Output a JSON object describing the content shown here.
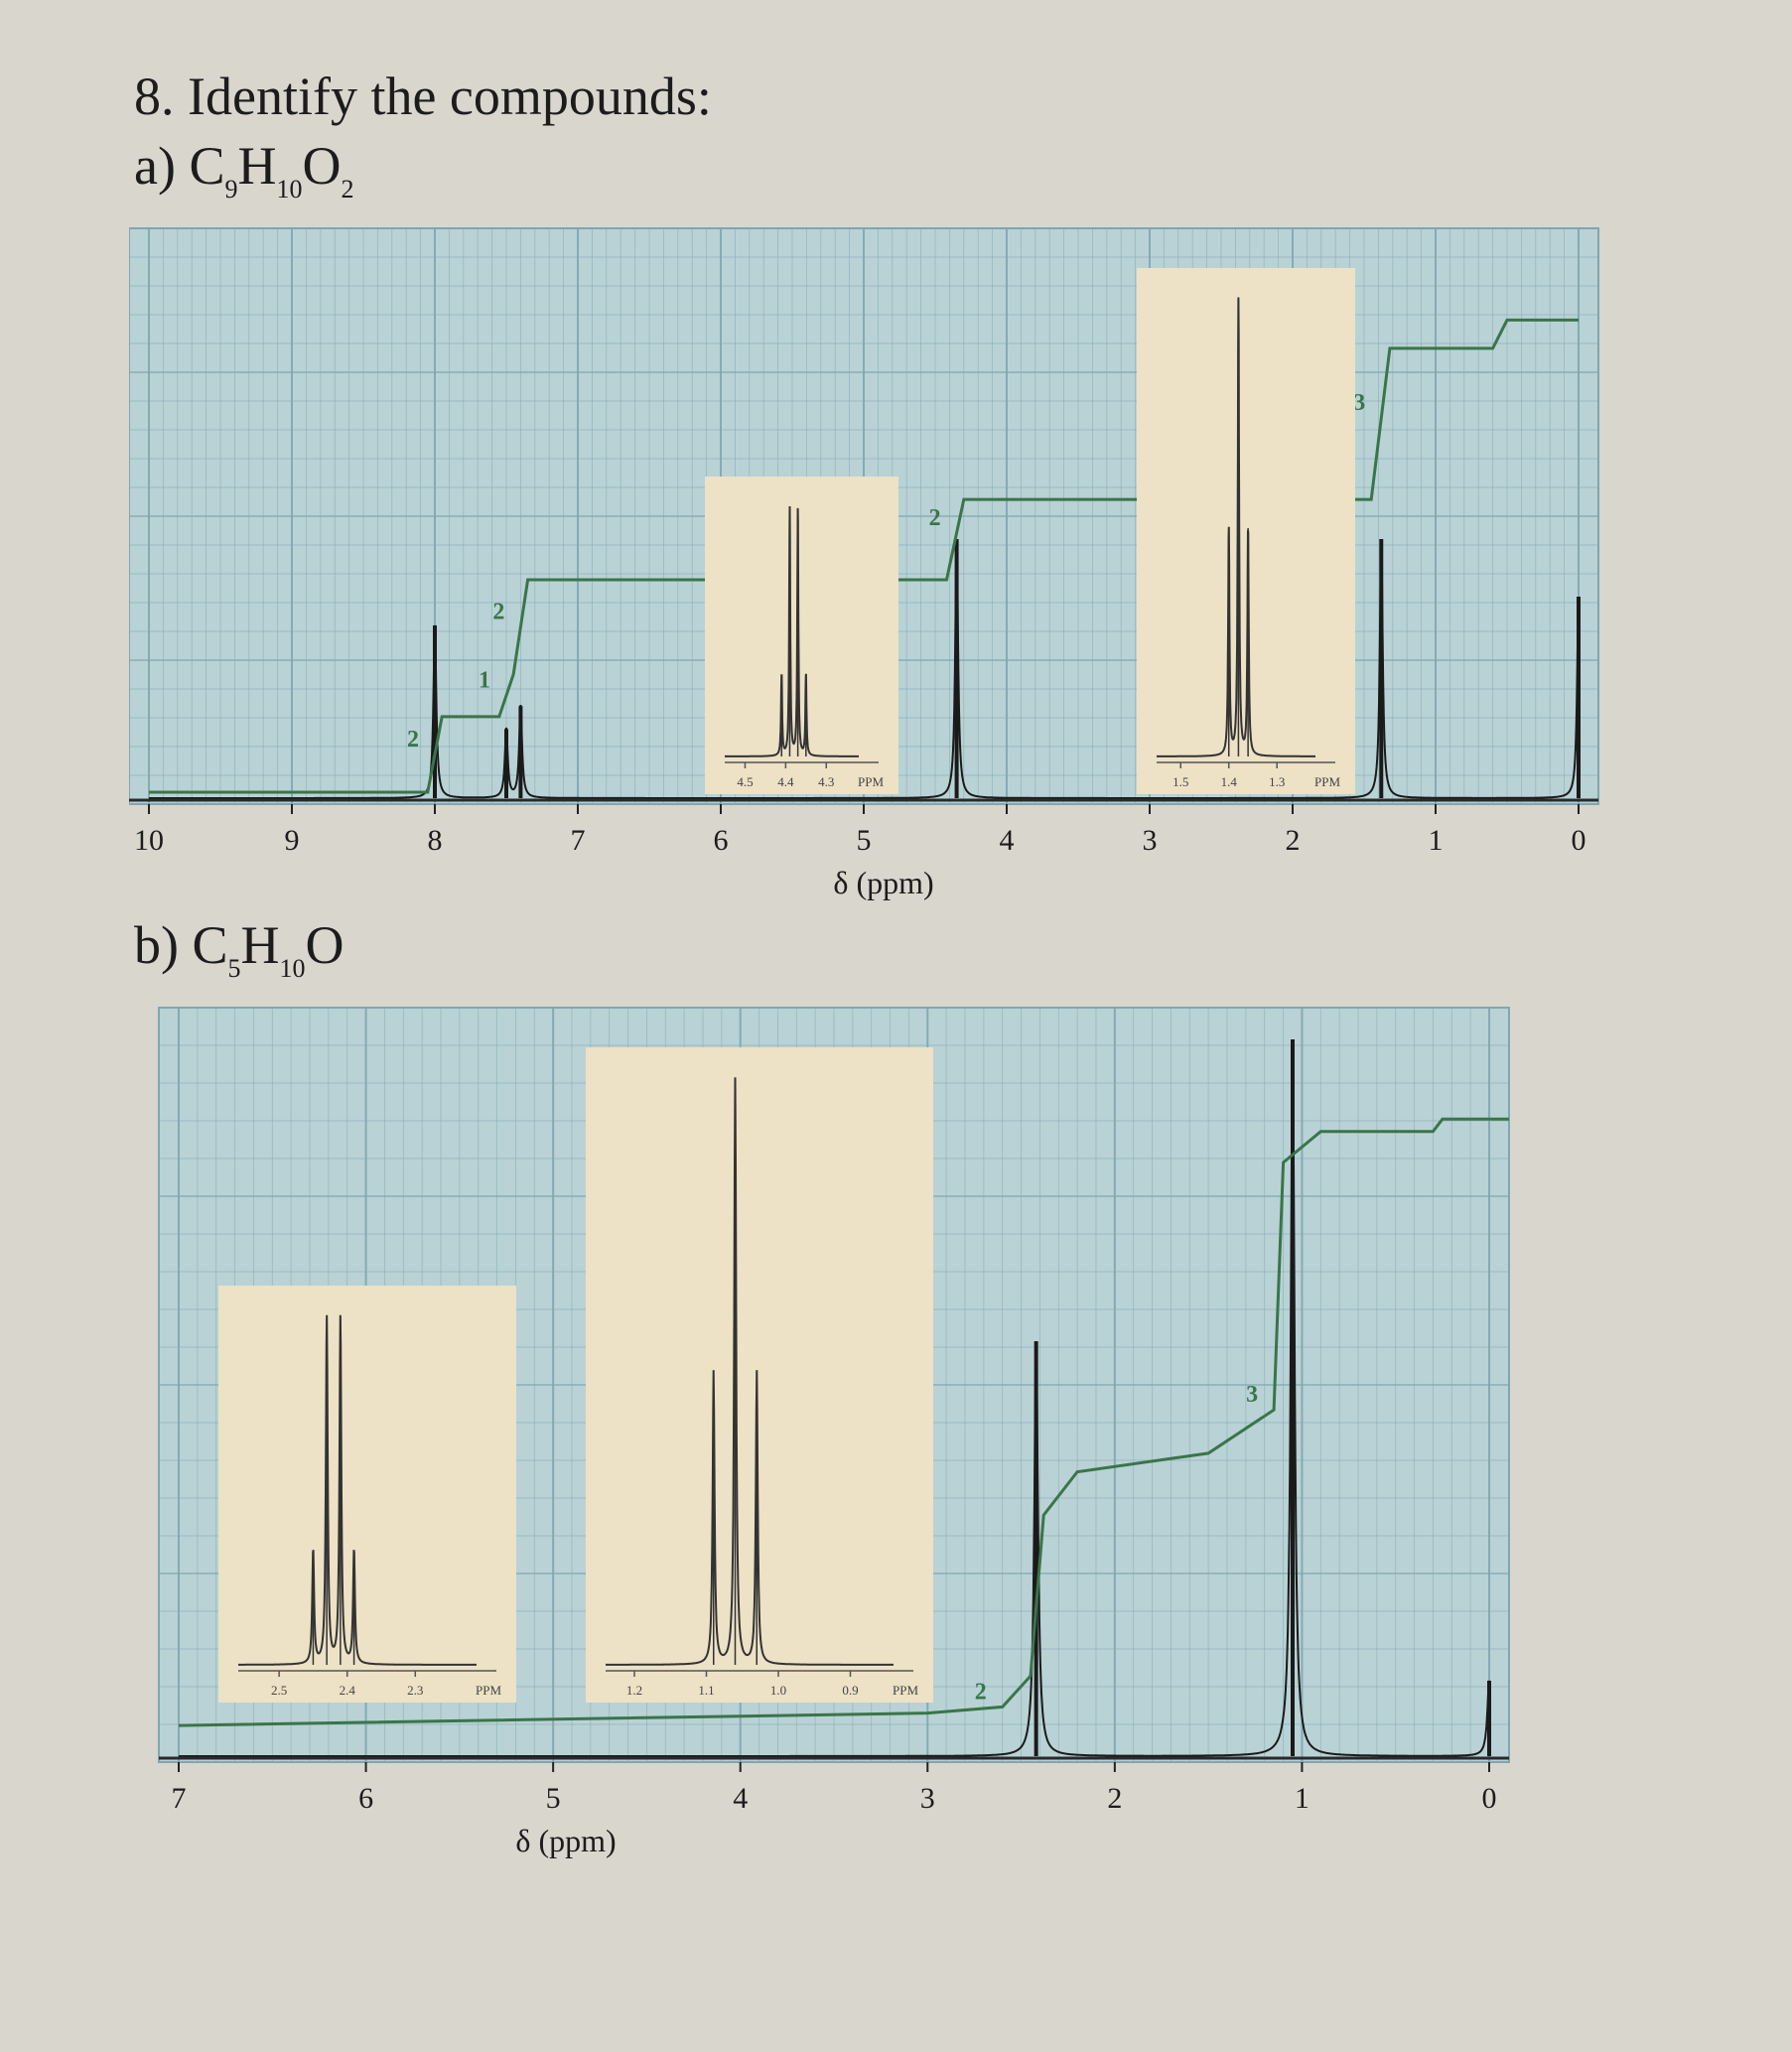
{
  "question": {
    "heading": "8. Identify the compounds:",
    "part_a": {
      "label": "a)",
      "formula": [
        [
          "C",
          "9"
        ],
        [
          "H",
          "10"
        ],
        [
          "O",
          "2"
        ]
      ]
    },
    "part_b": {
      "label": "b)",
      "formula": [
        [
          "C",
          "5"
        ],
        [
          "H",
          "10"
        ],
        [
          "O",
          ""
        ]
      ]
    }
  },
  "colors": {
    "paper": "#d9d6cd",
    "grid_fill": "#b9d2d6",
    "grid_line": "#7fa7b0",
    "inset_fill": "#ede1c6",
    "peak": "#1a1a1a",
    "integral": "#3a7548"
  },
  "chart_data": [
    {
      "id": "a",
      "type": "line",
      "title": "",
      "xlabel": "δ (ppm)",
      "xlim": [
        10,
        0
      ],
      "x_ticks": [
        "10",
        "9",
        "8",
        "7",
        "6",
        "5",
        "4",
        "3",
        "2",
        "1",
        "0"
      ],
      "grid": true,
      "peaks": [
        {
          "shift": 8.0,
          "height": 0.3,
          "multiplicity": "doublet"
        },
        {
          "shift": 7.5,
          "height": 0.12,
          "multiplicity": "multiplet"
        },
        {
          "shift": 7.4,
          "height": 0.16,
          "multiplicity": "multiplet"
        },
        {
          "shift": 4.35,
          "height": 0.45,
          "multiplicity": "quartet"
        },
        {
          "shift": 1.38,
          "height": 0.45,
          "multiplicity": "triplet"
        },
        {
          "shift": 0.0,
          "height": 0.35,
          "multiplicity": "singlet"
        }
      ],
      "integrals": [
        {
          "shift": 8.0,
          "label": "2"
        },
        {
          "shift": 7.5,
          "label": "1"
        },
        {
          "shift": 7.4,
          "label": "2"
        },
        {
          "shift": 4.35,
          "label": "2"
        },
        {
          "shift": 1.38,
          "label": "3"
        }
      ],
      "integral_curve": [
        [
          10.0,
          0.0
        ],
        [
          8.05,
          0.0
        ],
        [
          7.95,
          0.16
        ],
        [
          7.55,
          0.16
        ],
        [
          7.45,
          0.25
        ],
        [
          7.35,
          0.45
        ],
        [
          4.42,
          0.45
        ],
        [
          4.3,
          0.62
        ],
        [
          1.45,
          0.62
        ],
        [
          1.32,
          0.94
        ],
        [
          0.6,
          0.94
        ],
        [
          0.5,
          1.0
        ],
        [
          0.0,
          1.0
        ]
      ],
      "insets": [
        {
          "ticks": [
            "4.5",
            "4.4",
            "4.3",
            "PPM"
          ],
          "tick_values": [
            4.5,
            4.4,
            4.3
          ],
          "xlim": [
            4.55,
            4.22
          ],
          "multiplicity": "quartet",
          "center": 4.38,
          "spacing": 0.02,
          "intensities": [
            0.33,
            1,
            1,
            0.33
          ]
        },
        {
          "ticks": [
            "1.5",
            "1.4",
            "1.3",
            "PPM"
          ],
          "tick_values": [
            1.5,
            1.4,
            1.3
          ],
          "xlim": [
            1.55,
            1.22
          ],
          "multiplicity": "triplet",
          "center": 1.38,
          "spacing": 0.02,
          "intensities": [
            0.5,
            1,
            0.5
          ]
        }
      ]
    },
    {
      "id": "b",
      "type": "line",
      "title": "",
      "xlabel": "δ (ppm)",
      "xlim": [
        7,
        0
      ],
      "x_ticks": [
        "7",
        "6",
        "5",
        "4",
        "3",
        "2",
        "1",
        "0"
      ],
      "grid": true,
      "peaks": [
        {
          "shift": 2.42,
          "height": 0.55,
          "multiplicity": "quartet"
        },
        {
          "shift": 1.05,
          "height": 0.95,
          "multiplicity": "triplet"
        },
        {
          "shift": 0.0,
          "height": 0.1,
          "multiplicity": "singlet"
        }
      ],
      "integrals": [
        {
          "shift": 2.6,
          "label": "2"
        },
        {
          "shift": 1.15,
          "label": "3"
        }
      ],
      "integral_curve": [
        [
          7.0,
          0.04
        ],
        [
          3.0,
          0.06
        ],
        [
          2.6,
          0.07
        ],
        [
          2.45,
          0.12
        ],
        [
          2.38,
          0.38
        ],
        [
          2.2,
          0.45
        ],
        [
          1.5,
          0.48
        ],
        [
          1.15,
          0.55
        ],
        [
          1.1,
          0.95
        ],
        [
          0.9,
          1.0
        ],
        [
          0.3,
          1.0
        ],
        [
          0.25,
          1.02
        ],
        [
          -0.5,
          1.02
        ]
      ],
      "insets": [
        {
          "ticks": [
            "2.5",
            "2.4",
            "2.3",
            "PPM"
          ],
          "tick_values": [
            2.5,
            2.4,
            2.3
          ],
          "xlim": [
            2.56,
            2.21
          ],
          "multiplicity": "quartet",
          "center": 2.42,
          "spacing": 0.02,
          "intensities": [
            0.33,
            1,
            1,
            0.33
          ]
        },
        {
          "ticks": [
            "1.2",
            "1.1",
            "1.0",
            "0.9",
            "PPM"
          ],
          "tick_values": [
            1.2,
            1.1,
            1.0,
            0.9
          ],
          "xlim": [
            1.24,
            0.84
          ],
          "multiplicity": "triplet",
          "center": 1.06,
          "spacing": 0.03,
          "intensities": [
            0.5,
            1,
            0.5
          ]
        }
      ]
    }
  ]
}
